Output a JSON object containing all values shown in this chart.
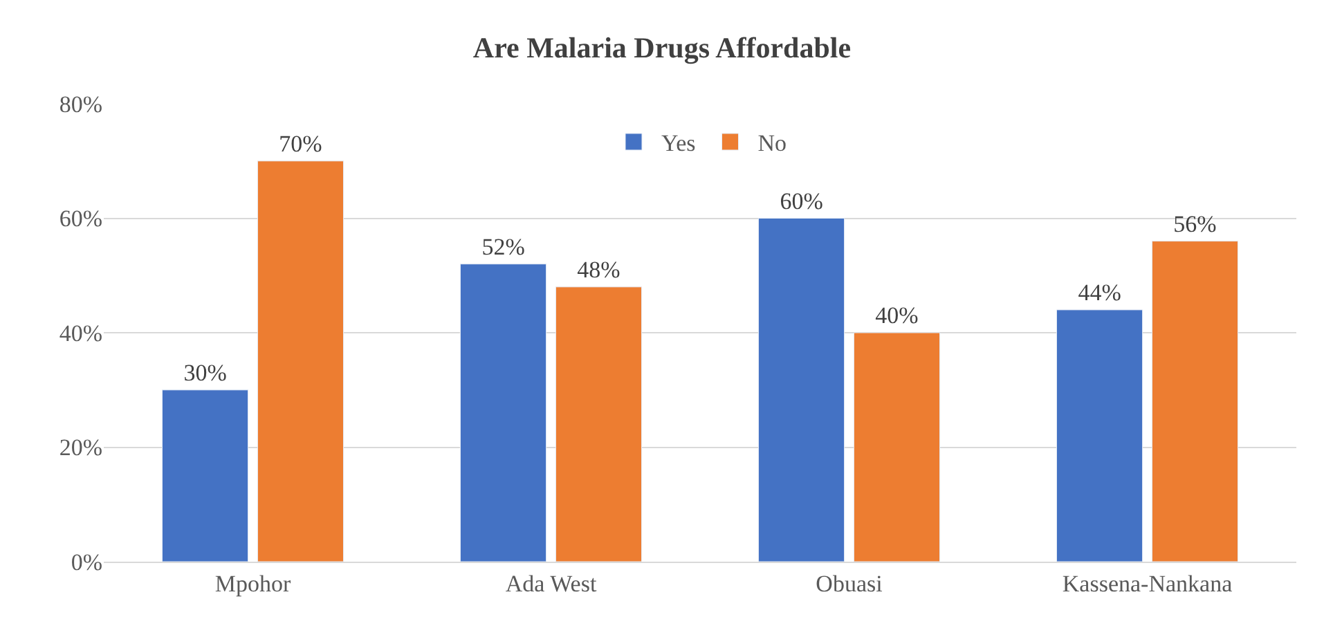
{
  "chart_data": {
    "type": "bar",
    "title": "Are Malaria Drugs Affordable",
    "categories": [
      "Mpohor",
      "Ada West",
      "Obuasi",
      "Kassena-Nankana"
    ],
    "series": [
      {
        "name": "Yes",
        "color": "#4472c4",
        "values": [
          30,
          52,
          60,
          44
        ],
        "value_labels": [
          "30%",
          "52%",
          "60%",
          "44%"
        ]
      },
      {
        "name": "No",
        "color": "#ed7d31",
        "values": [
          70,
          48,
          40,
          56
        ],
        "value_labels": [
          "70%",
          "48%",
          "40%",
          "56%"
        ]
      }
    ],
    "ylim": [
      0,
      80
    ],
    "yticks": [
      {
        "value": 0,
        "label": "0%"
      },
      {
        "value": 20,
        "label": "20%"
      },
      {
        "value": 40,
        "label": "40%"
      },
      {
        "value": 60,
        "label": "60%"
      },
      {
        "value": 80,
        "label": "80%"
      }
    ],
    "grid": "y",
    "legend": "top"
  }
}
